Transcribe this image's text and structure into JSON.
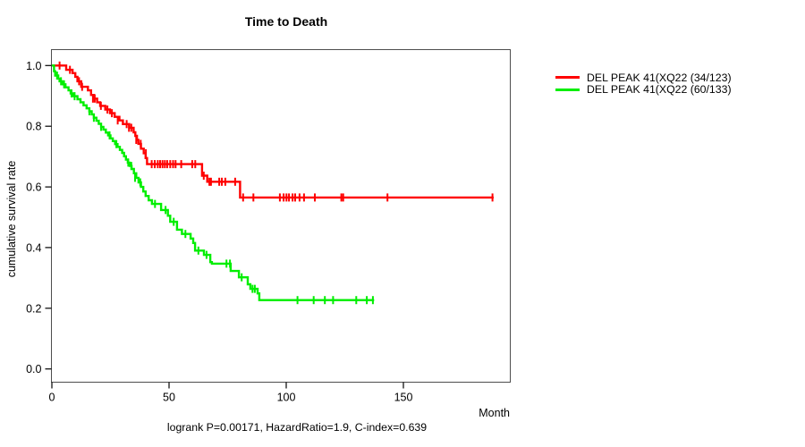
{
  "title": "Time to Death",
  "caption": "logrank P=0.00171, HazardRatio=1.9, C-index=0.639",
  "colors": {
    "series_red": "#ff0000",
    "series_green": "#00ee00",
    "axis_box": "#4d4d4d",
    "text": "#000000",
    "background": "#ffffff"
  },
  "chart_data": {
    "type": "line",
    "subtype": "kaplan-meier-step-curves",
    "title": "Time to Death",
    "xlabel": "Month",
    "ylabel": "cumulative survival rate",
    "xlim": [
      0,
      195
    ],
    "ylim": [
      0.0,
      1.0
    ],
    "grid": false,
    "legend_position": "outside-right",
    "annotation": "logrank P=0.00171, HazardRatio=1.9, C-index=0.639",
    "x_tick_values": [
      0,
      50,
      100,
      150
    ],
    "x_tick_labels": [
      "0",
      "50",
      "100",
      "150"
    ],
    "y_tick_values": [
      0.0,
      0.2,
      0.4,
      0.6,
      0.8,
      1.0
    ],
    "y_tick_labels": [
      "0.0",
      "0.2",
      "0.4",
      "0.6",
      "0.8",
      "1.0"
    ],
    "series": [
      {
        "name": "DEL PEAK 41(XQ22 (34/123)",
        "color": "#ff0000",
        "events": "34/123",
        "final_survival": 0.565,
        "end_month": 188.5,
        "steps": [
          [
            0,
            1.0
          ],
          [
            6.1,
            0.986
          ],
          [
            8.8,
            0.975
          ],
          [
            10,
            0.963
          ],
          [
            10.9,
            0.948
          ],
          [
            12.5,
            0.93
          ],
          [
            15.4,
            0.918
          ],
          [
            16.7,
            0.903
          ],
          [
            18,
            0.891
          ],
          [
            19.3,
            0.879
          ],
          [
            20.6,
            0.867
          ],
          [
            22.8,
            0.855
          ],
          [
            24.8,
            0.843
          ],
          [
            26.8,
            0.831
          ],
          [
            28.8,
            0.819
          ],
          [
            30.3,
            0.807
          ],
          [
            33,
            0.795
          ],
          [
            34.9,
            0.78
          ],
          [
            35.6,
            0.768
          ],
          [
            36.3,
            0.755
          ],
          [
            36.9,
            0.742
          ],
          [
            38,
            0.726
          ],
          [
            39.2,
            0.711
          ],
          [
            40,
            0.695
          ],
          [
            40.6,
            0.675
          ],
          [
            64.1,
            0.637
          ],
          [
            66.3,
            0.617
          ],
          [
            80.3,
            0.565
          ]
        ],
        "censor_marks": [
          [
            3.3,
            1.0
          ],
          [
            7.7,
            0.986
          ],
          [
            11.6,
            0.948
          ],
          [
            12.9,
            0.93
          ],
          [
            17.5,
            0.891
          ],
          [
            18.3,
            0.891
          ],
          [
            20.9,
            0.867
          ],
          [
            23.7,
            0.855
          ],
          [
            25.6,
            0.843
          ],
          [
            28.1,
            0.819
          ],
          [
            31.9,
            0.807
          ],
          [
            32.9,
            0.795
          ],
          [
            33.9,
            0.795
          ],
          [
            36,
            0.755
          ],
          [
            37.9,
            0.742
          ],
          [
            40.1,
            0.711
          ],
          [
            42.6,
            0.675
          ],
          [
            43.9,
            0.675
          ],
          [
            45.2,
            0.675
          ],
          [
            46.2,
            0.675
          ],
          [
            47.2,
            0.675
          ],
          [
            48.2,
            0.675
          ],
          [
            49.2,
            0.675
          ],
          [
            50.5,
            0.675
          ],
          [
            51.7,
            0.675
          ],
          [
            52.8,
            0.675
          ],
          [
            55.2,
            0.675
          ],
          [
            59.9,
            0.675
          ],
          [
            61.2,
            0.675
          ],
          [
            64.8,
            0.637
          ],
          [
            67.2,
            0.617
          ],
          [
            67.9,
            0.617
          ],
          [
            71.4,
            0.617
          ],
          [
            72.5,
            0.617
          ],
          [
            74,
            0.617
          ],
          [
            78.2,
            0.617
          ],
          [
            81.6,
            0.565
          ],
          [
            86,
            0.565
          ],
          [
            97.3,
            0.565
          ],
          [
            98.9,
            0.565
          ],
          [
            100.1,
            0.565
          ],
          [
            101.2,
            0.565
          ],
          [
            102.7,
            0.565
          ],
          [
            103.8,
            0.565
          ],
          [
            105.7,
            0.565
          ],
          [
            107.6,
            0.565
          ],
          [
            112.2,
            0.565
          ],
          [
            123.5,
            0.565
          ],
          [
            124.3,
            0.565
          ],
          [
            143.2,
            0.565
          ],
          [
            188,
            0.565
          ]
        ]
      },
      {
        "name": "DEL PEAK 41(XQ22 (60/133)",
        "color": "#00ee00",
        "events": "60/133",
        "final_survival": 0.227,
        "end_month": 137.5,
        "steps": [
          [
            0,
            1.0
          ],
          [
            0.9,
            0.981
          ],
          [
            1.4,
            0.967
          ],
          [
            2.7,
            0.957
          ],
          [
            3.3,
            0.948
          ],
          [
            4.5,
            0.938
          ],
          [
            5.8,
            0.928
          ],
          [
            7.1,
            0.918
          ],
          [
            8,
            0.908
          ],
          [
            9.2,
            0.899
          ],
          [
            10.9,
            0.889
          ],
          [
            12.2,
            0.879
          ],
          [
            13.5,
            0.869
          ],
          [
            14.8,
            0.859
          ],
          [
            16,
            0.849
          ],
          [
            17,
            0.839
          ],
          [
            17.9,
            0.828
          ],
          [
            19,
            0.818
          ],
          [
            20,
            0.808
          ],
          [
            21,
            0.798
          ],
          [
            22,
            0.789
          ],
          [
            23,
            0.779
          ],
          [
            24,
            0.77
          ],
          [
            25,
            0.76
          ],
          [
            26,
            0.751
          ],
          [
            27,
            0.741
          ],
          [
            28,
            0.732
          ],
          [
            29,
            0.722
          ],
          [
            30,
            0.712
          ],
          [
            30.8,
            0.701
          ],
          [
            31.6,
            0.69
          ],
          [
            32.4,
            0.68
          ],
          [
            33.2,
            0.669
          ],
          [
            34,
            0.659
          ],
          [
            35,
            0.645
          ],
          [
            36,
            0.63
          ],
          [
            37,
            0.615
          ],
          [
            38,
            0.6
          ],
          [
            39,
            0.585
          ],
          [
            40,
            0.57
          ],
          [
            41.3,
            0.556
          ],
          [
            42.7,
            0.544
          ],
          [
            46.6,
            0.524
          ],
          [
            49.5,
            0.505
          ],
          [
            50.5,
            0.485
          ],
          [
            53.4,
            0.459
          ],
          [
            55.5,
            0.445
          ],
          [
            59.2,
            0.43
          ],
          [
            60.3,
            0.415
          ],
          [
            61.1,
            0.39
          ],
          [
            64.9,
            0.376
          ],
          [
            67.6,
            0.352
          ],
          [
            68.3,
            0.347
          ],
          [
            76.3,
            0.323
          ],
          [
            79.8,
            0.302
          ],
          [
            83.6,
            0.279
          ],
          [
            84.7,
            0.264
          ],
          [
            87.8,
            0.249
          ],
          [
            88.5,
            0.227
          ]
        ],
        "censor_marks": [
          [
            2.2,
            0.967
          ],
          [
            3.9,
            0.948
          ],
          [
            5.2,
            0.938
          ],
          [
            8.4,
            0.908
          ],
          [
            9.7,
            0.899
          ],
          [
            16,
            0.849
          ],
          [
            17.9,
            0.828
          ],
          [
            21,
            0.798
          ],
          [
            24.6,
            0.77
          ],
          [
            27.5,
            0.741
          ],
          [
            32.6,
            0.68
          ],
          [
            33.9,
            0.669
          ],
          [
            35.5,
            0.63
          ],
          [
            37.7,
            0.615
          ],
          [
            44,
            0.544
          ],
          [
            48.5,
            0.524
          ],
          [
            52,
            0.485
          ],
          [
            57,
            0.445
          ],
          [
            62.5,
            0.39
          ],
          [
            66,
            0.376
          ],
          [
            74.5,
            0.347
          ],
          [
            76,
            0.347
          ],
          [
            81,
            0.302
          ],
          [
            85.6,
            0.264
          ],
          [
            86.6,
            0.264
          ],
          [
            104.8,
            0.227
          ],
          [
            111.7,
            0.227
          ],
          [
            116.5,
            0.227
          ],
          [
            120,
            0.227
          ],
          [
            129.9,
            0.227
          ],
          [
            134.4,
            0.227
          ],
          [
            137,
            0.227
          ]
        ]
      }
    ]
  }
}
